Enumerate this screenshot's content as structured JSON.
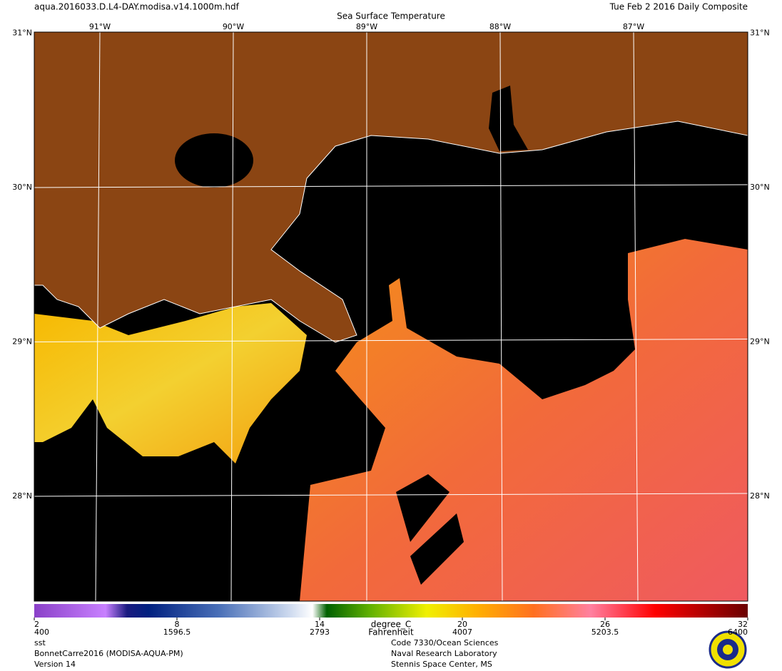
{
  "header": {
    "filename": "aqua.2016033.D.L4-DAY.modisa.v14.1000m.hdf",
    "date": "Tue Feb  2 2016 Daily Composite",
    "title": "Sea Surface Temperature"
  },
  "map": {
    "lon_ticks": [
      {
        "value": -91,
        "label": "91°W"
      },
      {
        "value": -90,
        "label": "90°W"
      },
      {
        "value": -89,
        "label": "89°W"
      },
      {
        "value": -88,
        "label": "88°W"
      },
      {
        "value": -87,
        "label": "87°W"
      }
    ],
    "lat_ticks": [
      {
        "value": 31,
        "label": "31°N"
      },
      {
        "value": 30,
        "label": "30°N"
      },
      {
        "value": 29,
        "label": "29°N"
      },
      {
        "value": 28,
        "label": "28°N"
      }
    ]
  },
  "colorbar": {
    "units": "degree_C",
    "alt_units": "Fahrenheit",
    "range": [
      2,
      32
    ],
    "ticks": [
      2,
      8,
      14,
      20,
      26,
      32
    ],
    "alt_ticks": [
      400,
      1596.5,
      2793,
      4007,
      5203.5,
      6400
    ]
  },
  "footer": {
    "product": "sst",
    "dataset": "BonnetCarre2016 (MODISA-AQUA-PM)",
    "version": "Version 14",
    "org_lines": [
      "Code 7330/Ocean Sciences",
      "Naval Research Laboratory",
      "Stennis Space Center, MS"
    ]
  }
}
